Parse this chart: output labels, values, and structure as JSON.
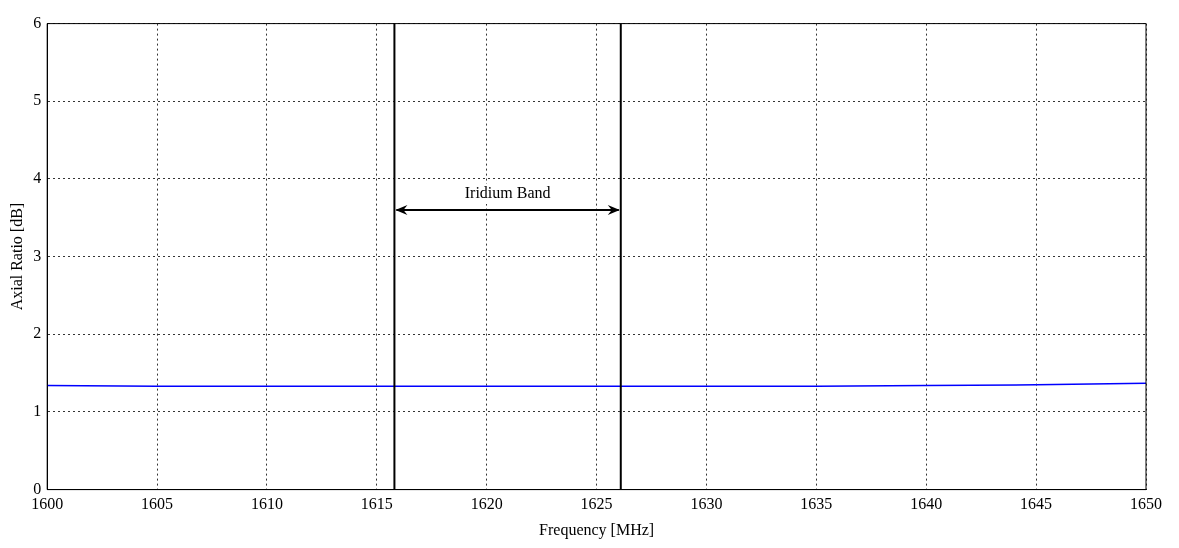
{
  "chart_data": {
    "type": "line",
    "xlabel": "Frequency [MHz]",
    "ylabel": "Axial Ratio [dB]",
    "x": [
      1600,
      1605,
      1610,
      1615,
      1620,
      1625,
      1630,
      1635,
      1640,
      1645,
      1650
    ],
    "series": [
      {
        "color": "#0000ff",
        "values": [
          1.34,
          1.33,
          1.33,
          1.33,
          1.33,
          1.33,
          1.33,
          1.33,
          1.34,
          1.35,
          1.37
        ]
      }
    ],
    "xlim": [
      1600,
      1650
    ],
    "xticks": [
      1600,
      1605,
      1610,
      1615,
      1620,
      1625,
      1630,
      1635,
      1640,
      1645,
      1650
    ],
    "ylim": [
      0,
      6
    ],
    "yticks": [
      0,
      1,
      2,
      3,
      4,
      5,
      6
    ],
    "ref_lines": [
      {
        "axis": "x",
        "value": 1615.8,
        "color": "#000000"
      },
      {
        "axis": "x",
        "value": 1626.1,
        "color": "#000000"
      }
    ],
    "annotations": [
      "Iridium Band"
    ],
    "grid": true,
    "legend": false,
    "marker": "none",
    "line_style": "solid"
  }
}
